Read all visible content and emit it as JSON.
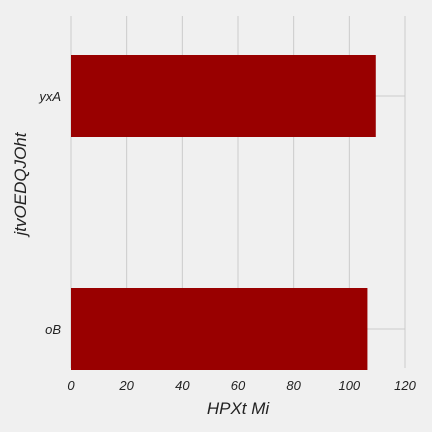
{
  "chart_data": {
    "type": "bar",
    "orientation": "horizontal",
    "title": "",
    "xlabel": "HPXt Mi",
    "ylabel": "jtvOEDQJOht",
    "categories": [
      "oB",
      "yxA"
    ],
    "values": [
      106.5,
      109.5
    ],
    "xlim": [
      0,
      120
    ],
    "xticks": [
      "0",
      "20",
      "40",
      "60",
      "80",
      "100",
      "120"
    ],
    "grid": true,
    "bar_color": "#990000",
    "background_color": "#f0f0f0",
    "grid_color": "#cbcbcb"
  }
}
